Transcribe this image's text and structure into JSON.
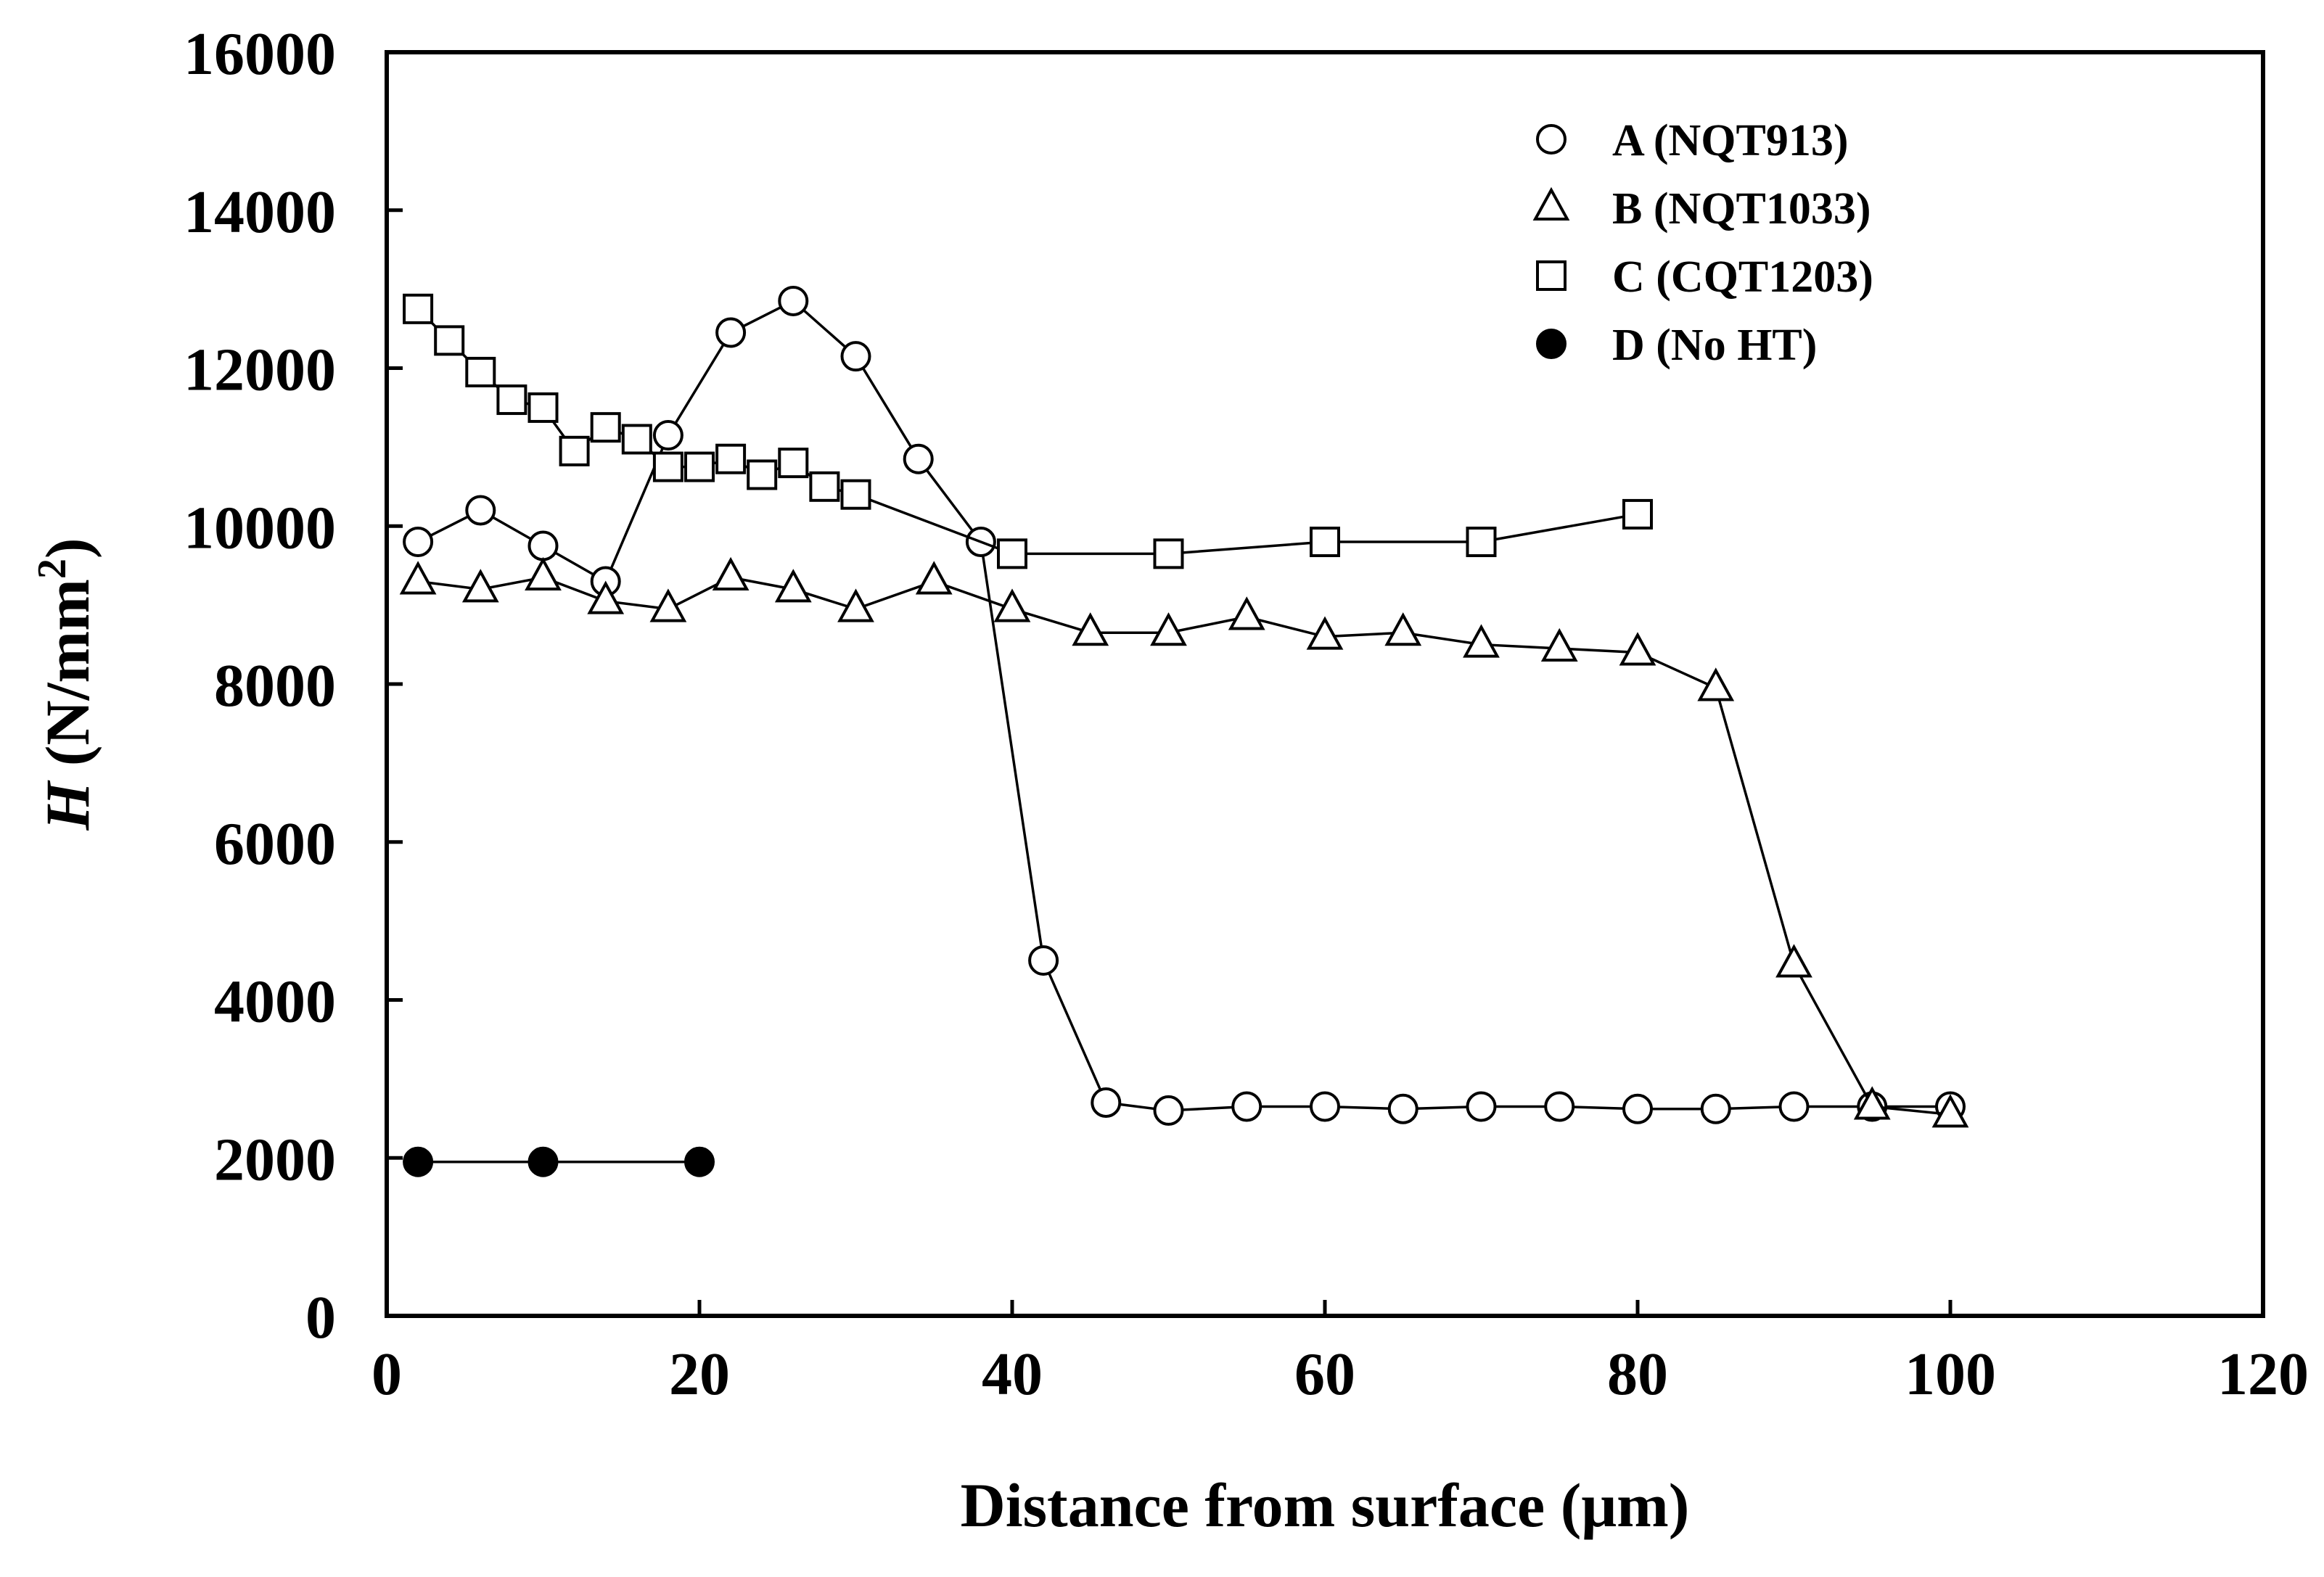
{
  "chart_data": {
    "type": "scatter",
    "title": "",
    "xlabel": "Distance from surface (μm)",
    "ylabel_italic": "H",
    "ylabel_rest": " (N/mm",
    "ylabel_sup": "2",
    "ylabel_close": ")",
    "xlim": [
      0,
      120
    ],
    "ylim": [
      0,
      16000
    ],
    "xticks": [
      0,
      20,
      40,
      60,
      80,
      100,
      120
    ],
    "yticks": [
      0,
      2000,
      4000,
      6000,
      8000,
      10000,
      12000,
      14000,
      16000
    ],
    "grid": false,
    "legend_position": "top-right",
    "series": [
      {
        "name": "A (NQT913)",
        "marker": "circle",
        "filled": false,
        "x": [
          2,
          6,
          10,
          14,
          18,
          22,
          26,
          30,
          34,
          38,
          42,
          46,
          50,
          55,
          60,
          65,
          70,
          75,
          80,
          85,
          90,
          95,
          100
        ],
        "y": [
          9800,
          10200,
          9750,
          9300,
          11150,
          12450,
          12850,
          12150,
          10850,
          9800,
          4500,
          2700,
          2600,
          2650,
          2650,
          2620,
          2650,
          2650,
          2620,
          2620,
          2650,
          2650,
          2650
        ]
      },
      {
        "name": "B (NQT1033)",
        "marker": "triangle",
        "filled": false,
        "x": [
          2,
          6,
          10,
          14,
          18,
          22,
          26,
          30,
          35,
          40,
          45,
          50,
          55,
          60,
          65,
          70,
          75,
          80,
          85,
          90,
          95,
          100
        ],
        "y": [
          9300,
          9200,
          9350,
          9050,
          8950,
          9350,
          9200,
          8950,
          9300,
          8950,
          8650,
          8650,
          8850,
          8600,
          8650,
          8500,
          8450,
          8400,
          7950,
          4450,
          2650,
          2550
        ]
      },
      {
        "name": "C (CQT1203)",
        "marker": "square",
        "filled": false,
        "x": [
          2,
          4,
          6,
          8,
          10,
          12,
          14,
          16,
          18,
          20,
          22,
          24,
          26,
          28,
          30,
          40,
          50,
          60,
          70,
          80
        ],
        "y": [
          12750,
          12350,
          11950,
          11600,
          11500,
          10950,
          11250,
          11100,
          10750,
          10750,
          10850,
          10650,
          10800,
          10500,
          10400,
          9650,
          9650,
          9800,
          9800,
          10150
        ]
      },
      {
        "name": "D (No HT)",
        "marker": "circle",
        "filled": true,
        "x": [
          2,
          10,
          20
        ],
        "y": [
          1950,
          1950,
          1950
        ]
      }
    ]
  }
}
